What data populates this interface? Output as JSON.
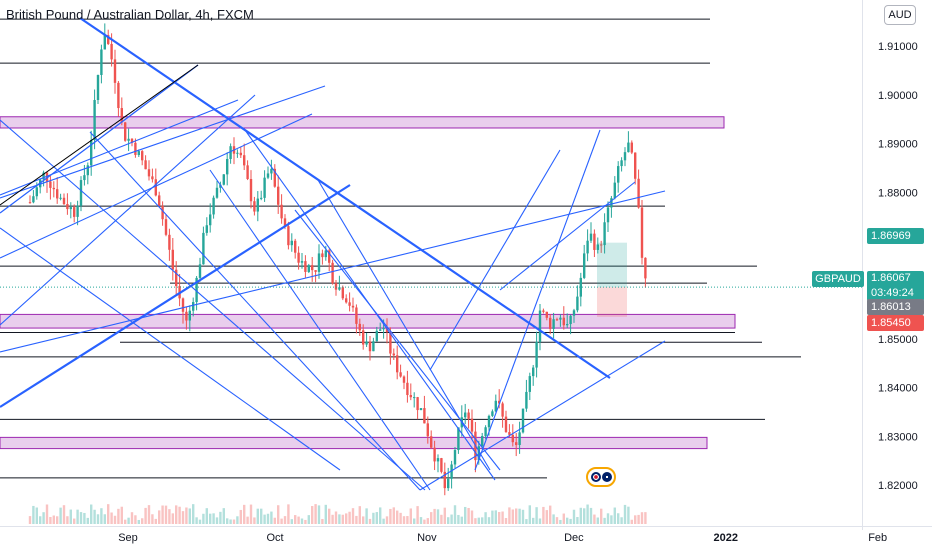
{
  "title": "British Pound / Australian Dollar, 4h, FXCM",
  "currency_button": "AUD",
  "symbol_label": "GBPAUD",
  "current_price": "1.86067",
  "countdown": "03:49:24",
  "target_price": "1.86969",
  "mid_price": "1.86013",
  "stop_price": "1.85450",
  "colors": {
    "up": "#26a69a",
    "down": "#ef5350",
    "trendline": "#2962ff",
    "zone_fill": "#e1bee7",
    "zone_border": "#9c27b0",
    "horizontal": "#131722",
    "target_label": "#26a69a",
    "stop_label": "#ef5350",
    "mid_label": "#787b86"
  },
  "chart_data": {
    "type": "candlestick",
    "symbol": "GBPAUD",
    "timeframe": "4h",
    "source": "FXCM",
    "y_ticks": [
      1.82,
      1.83,
      1.84,
      1.85,
      1.86,
      1.87,
      1.88,
      1.89,
      1.9,
      1.91
    ],
    "y_tick_labels": [
      "1.82000",
      "1.83000",
      "1.84000",
      "1.85000",
      "",
      "",
      "1.88000",
      "1.89000",
      "1.90000",
      "1.91000"
    ],
    "ylim": [
      1.8165,
      1.9185
    ],
    "x_tick_labels": [
      "Sep",
      "Oct",
      "Nov",
      "Dec",
      "2022",
      "Feb"
    ],
    "x_ticks": [
      "2021-09-01",
      "2021-10-01",
      "2021-11-01",
      "2021-12-01",
      "2022-01-01",
      "2022-02-01"
    ],
    "price_path": [
      [
        "2021-08-12",
        1.878
      ],
      [
        "2021-08-15",
        1.884
      ],
      [
        "2021-08-18",
        1.879
      ],
      [
        "2021-08-21",
        1.876
      ],
      [
        "2021-08-24",
        1.887
      ],
      [
        "2021-08-26",
        1.905
      ],
      [
        "2021-08-27",
        1.914
      ],
      [
        "2021-08-29",
        1.906
      ],
      [
        "2021-08-31",
        1.892
      ],
      [
        "2021-09-02",
        1.89
      ],
      [
        "2021-09-04",
        1.886
      ],
      [
        "2021-09-07",
        1.88
      ],
      [
        "2021-09-09",
        1.87
      ],
      [
        "2021-09-11",
        1.86
      ],
      [
        "2021-09-13",
        1.853
      ],
      [
        "2021-09-15",
        1.862
      ],
      [
        "2021-09-17",
        1.874
      ],
      [
        "2021-09-20",
        1.882
      ],
      [
        "2021-09-22",
        1.89
      ],
      [
        "2021-09-24",
        1.887
      ],
      [
        "2021-09-27",
        1.876
      ],
      [
        "2021-09-30",
        1.885
      ],
      [
        "2021-10-03",
        1.872
      ],
      [
        "2021-10-06",
        1.866
      ],
      [
        "2021-10-09",
        1.864
      ],
      [
        "2021-10-11",
        1.869
      ],
      [
        "2021-10-13",
        1.862
      ],
      [
        "2021-10-16",
        1.858
      ],
      [
        "2021-10-18",
        1.852
      ],
      [
        "2021-10-20",
        1.848
      ],
      [
        "2021-10-23",
        1.853
      ],
      [
        "2021-10-25",
        1.846
      ],
      [
        "2021-10-28",
        1.84
      ],
      [
        "2021-10-31",
        1.835
      ],
      [
        "2021-11-02",
        1.828
      ],
      [
        "2021-11-04",
        1.822
      ],
      [
        "2021-11-05",
        1.818
      ],
      [
        "2021-11-07",
        1.829
      ],
      [
        "2021-11-09",
        1.836
      ],
      [
        "2021-11-11",
        1.826
      ],
      [
        "2021-11-13",
        1.833
      ],
      [
        "2021-11-15",
        1.838
      ],
      [
        "2021-11-17",
        1.832
      ],
      [
        "2021-11-19",
        1.827
      ],
      [
        "2021-11-21",
        1.836
      ],
      [
        "2021-11-23",
        1.847
      ],
      [
        "2021-11-24",
        1.856
      ],
      [
        "2021-11-26",
        1.853
      ],
      [
        "2021-11-28",
        1.855
      ],
      [
        "2021-11-30",
        1.852
      ],
      [
        "2021-12-02",
        1.86
      ],
      [
        "2021-12-04",
        1.872
      ],
      [
        "2021-12-06",
        1.868
      ],
      [
        "2021-12-08",
        1.876
      ],
      [
        "2021-12-10",
        1.884
      ],
      [
        "2021-12-12",
        1.89
      ],
      [
        "2021-12-13",
        1.886
      ],
      [
        "2021-12-14",
        1.878
      ],
      [
        "2021-12-15",
        1.866
      ],
      [
        "2021-12-16",
        1.861
      ]
    ],
    "zones": [
      {
        "from": 1.8932,
        "to": 1.8955
      },
      {
        "from": 1.8522,
        "to": 1.855
      },
      {
        "from": 1.8275,
        "to": 1.8298
      }
    ],
    "horizontal_levels": [
      1.9155,
      1.9065,
      1.8772,
      1.8649,
      1.8614,
      1.8513,
      1.8493,
      1.8463,
      1.8335,
      1.8215
    ],
    "position_tool": {
      "entry": 1.8606,
      "target": 1.8697,
      "stop": 1.8545
    }
  }
}
